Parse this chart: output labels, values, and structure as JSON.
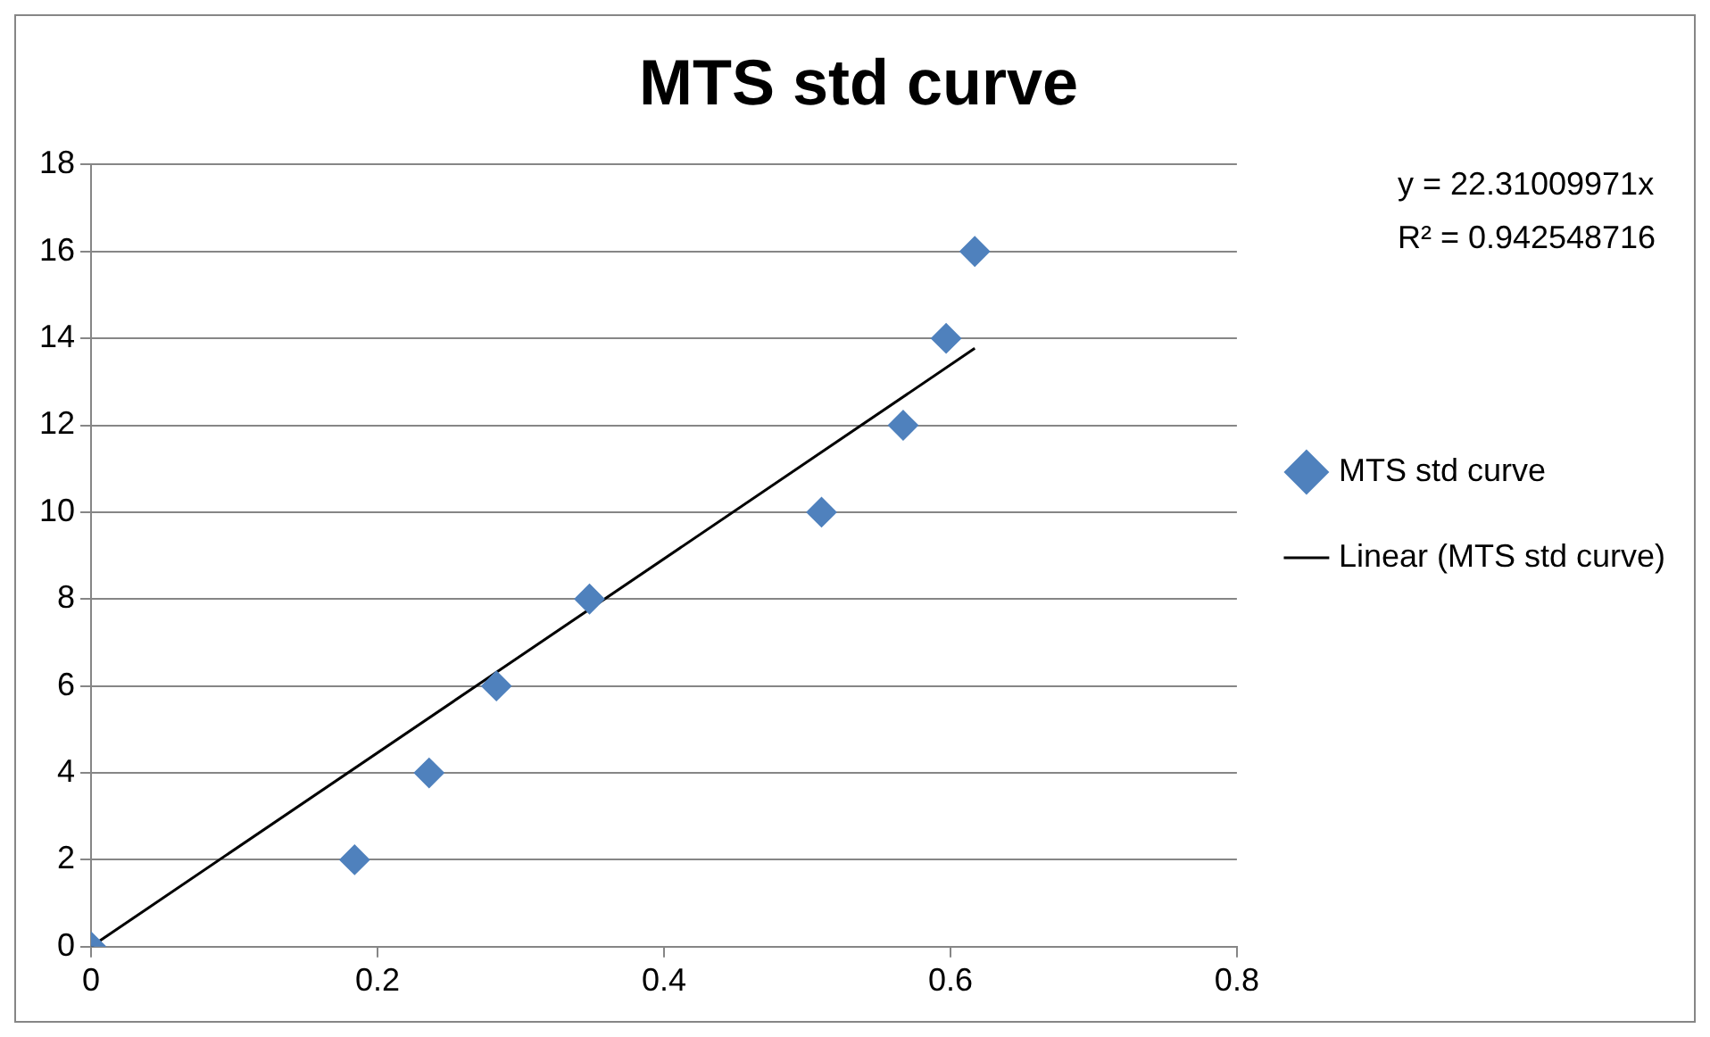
{
  "chart_data": {
    "type": "scatter",
    "title": "MTS std curve",
    "annotations": [
      "y = 22.31009971x",
      "R² = 0.942548716"
    ],
    "series": [
      {
        "name": "MTS std curve",
        "color": "#4f81bd",
        "x": [
          0,
          0.184,
          0.236,
          0.283,
          0.348,
          0.51,
          0.567,
          0.597,
          0.617
        ],
        "values": [
          0,
          2,
          4,
          6,
          8,
          10,
          12,
          14,
          16
        ]
      },
      {
        "name": "Linear (MTS std curve)",
        "type": "line",
        "marker": "none",
        "color": "#000000",
        "x": [
          0,
          0.617
        ],
        "values": [
          0,
          13.77
        ]
      }
    ],
    "xlim": [
      0,
      0.8
    ],
    "xticks": [
      0,
      0.2,
      0.4,
      0.6,
      0.8
    ],
    "ylim": [
      0,
      18
    ],
    "yticks": [
      0,
      2,
      4,
      6,
      8,
      10,
      12,
      14,
      16,
      18
    ],
    "grid": "y",
    "legend": "right",
    "marker": "diamond",
    "line_style": "solid"
  }
}
